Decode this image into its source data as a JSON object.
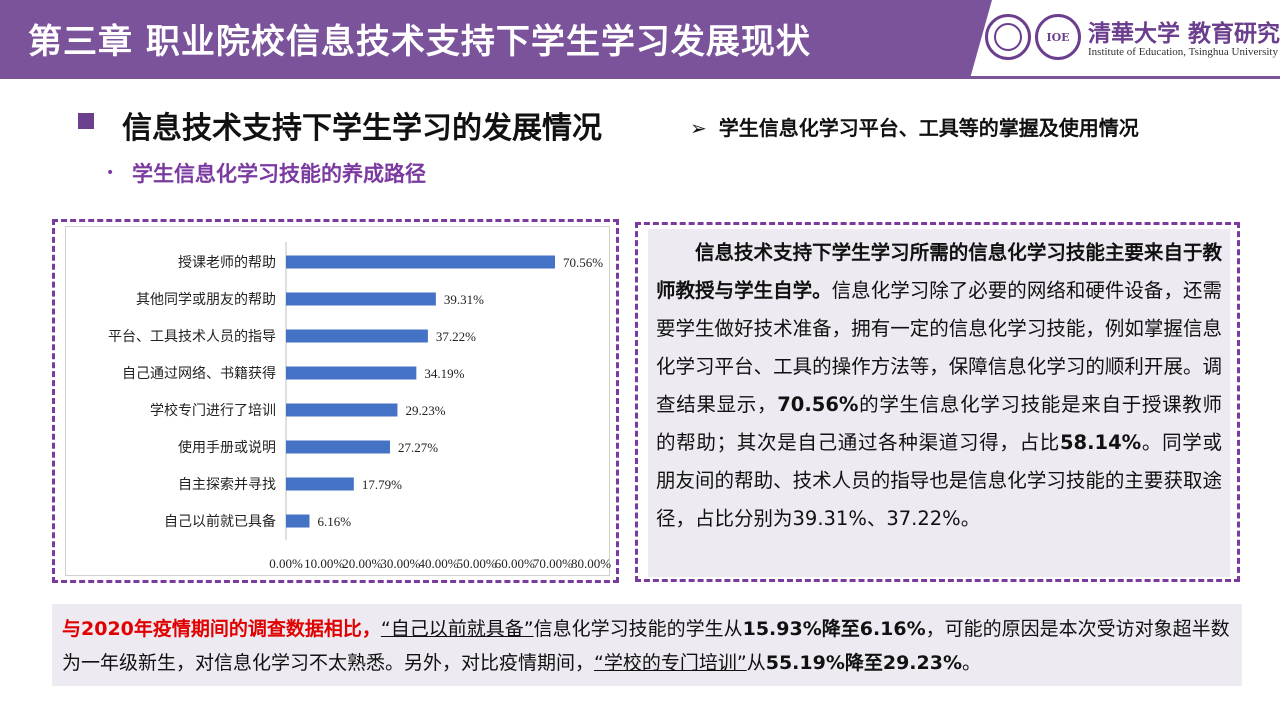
{
  "header": {
    "title": "第三章  职业院校信息技术支持下学生学习发展现状",
    "brand_cn": "清華大学 教育研究院",
    "brand_en": "Institute of Education, Tsinghua University",
    "logo2_text": "IOE"
  },
  "section": {
    "title": "信息技术支持下学生学习的发展情况",
    "right_subtitle": "学生信息化学习平台、工具等的掌握及使用情况",
    "bullet": "学生信息化学习技能的养成路径"
  },
  "chart_data": {
    "type": "bar",
    "orientation": "horizontal",
    "categories": [
      "授课老师的帮助",
      "其他同学或朋友的帮助",
      "平台、工具技术人员的指导",
      "自己通过网络、书籍获得",
      "学校专门进行了培训",
      "使用手册或说明",
      "自主探索并寻找",
      "自己以前就已具备"
    ],
    "values": [
      70.56,
      39.31,
      37.22,
      34.19,
      29.23,
      27.27,
      17.79,
      6.16
    ],
    "value_labels": [
      "70.56%",
      "39.31%",
      "37.22%",
      "34.19%",
      "29.23%",
      "27.27%",
      "17.79%",
      "6.16%"
    ],
    "x_ticks": [
      "0.00%",
      "10.00%",
      "20.00%",
      "30.00%",
      "40.00%",
      "50.00%",
      "60.00%",
      "70.00%",
      "80.00%"
    ],
    "xlim": [
      0,
      80
    ],
    "bar_color": "#4472c4",
    "grid": false
  },
  "text_panel": {
    "bold_lead": "信息技术支持下学生学习所需的信息化学习技能主要来自于教师教授与学生自学。",
    "p1": "信息化学习除了必要的网络和硬件设备，还需要学生做好技术准备，拥有一定的信息化学习技能，例如掌握信息化学习平台、工具的操作方法等，保障信息化学习的顺利开展。调查结果显示，",
    "v1": "70.56%",
    "p2": "的学生信息化学习技能是来自于授课教师的帮助；其次是自己通过各种渠道习得，占比",
    "v2": "58.14%",
    "p3": "。同学或朋友间的帮助、技术人员的指导也是信息化学习技能的主要获取途径，占比分别为39.31%、37.22%。"
  },
  "bottom": {
    "red": "与2020年疫情期间的调查数据相比，",
    "q1": "“自己以前就具备”",
    "t1": "信息化学习技能的学生从",
    "b1": "15.93%降至6.16%",
    "t2": "，可能的原因是本次受访对象超半数为一年级新生，对信息化学习不太熟悉。另外，对比疫情期间，",
    "q2": "“学校的专门培训”",
    "t3": "从",
    "b2": "55.19%降至29.23%",
    "t4": "。"
  },
  "colors": {
    "accent": "#7b539b",
    "dashed_border": "#7b3aa0",
    "panel_bg": "#eeeaf2",
    "highlight_red": "#e00000"
  }
}
